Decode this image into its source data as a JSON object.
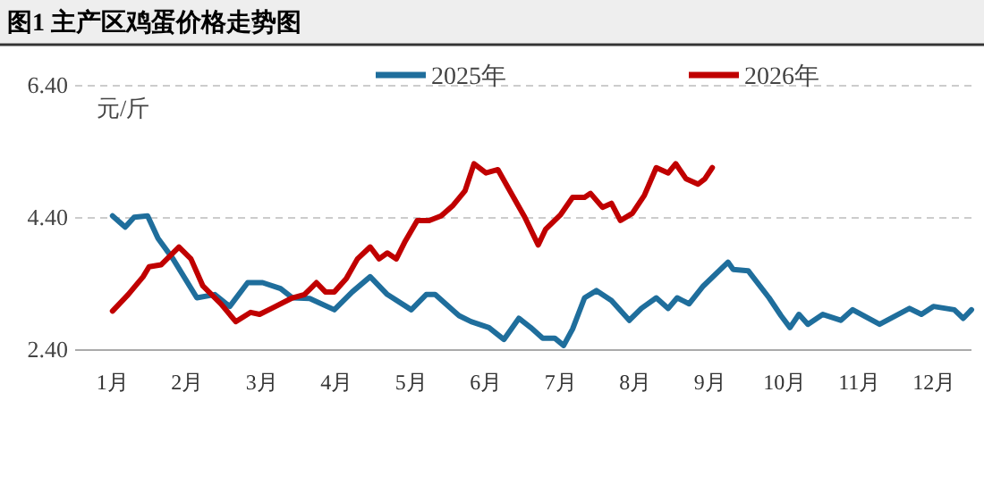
{
  "chart_data": {
    "type": "line",
    "title": "图1 主产区鸡蛋价格走势图",
    "ylabel": "元/斤",
    "xlim": [
      0,
      12
    ],
    "xticks": [
      {
        "value": 0.5,
        "label": "1月"
      },
      {
        "value": 1.5,
        "label": "2月"
      },
      {
        "value": 2.5,
        "label": "3月"
      },
      {
        "value": 3.5,
        "label": "4月"
      },
      {
        "value": 4.5,
        "label": "5月"
      },
      {
        "value": 5.5,
        "label": "6月"
      },
      {
        "value": 6.5,
        "label": "7月"
      },
      {
        "value": 7.5,
        "label": "8月"
      },
      {
        "value": 8.5,
        "label": "9月"
      },
      {
        "value": 9.5,
        "label": "10月"
      },
      {
        "value": 10.5,
        "label": "11月"
      },
      {
        "value": 11.5,
        "label": "12月"
      }
    ],
    "ylim": [
      2.4,
      6.4
    ],
    "yticks": [
      {
        "value": 2.4,
        "label": "2.40"
      },
      {
        "value": 4.4,
        "label": "4.40"
      },
      {
        "value": 6.4,
        "label": "6.40"
      }
    ],
    "grid": "y",
    "legend": "top",
    "marker": "none",
    "line_style": "solid",
    "series": [
      {
        "name": "2025年",
        "color": "#1f6e9c",
        "x": [
          0.5,
          0.67,
          0.79,
          0.97,
          1.11,
          1.31,
          1.63,
          1.87,
          2.07,
          2.31,
          2.51,
          2.75,
          2.91,
          3.14,
          3.47,
          3.71,
          3.95,
          4.18,
          4.5,
          4.7,
          4.82,
          5.14,
          5.3,
          5.54,
          5.74,
          5.94,
          6.1,
          6.26,
          6.42,
          6.54,
          6.66,
          6.82,
          6.98,
          7.18,
          7.42,
          7.58,
          7.78,
          7.94,
          8.06,
          8.22,
          8.41,
          8.74,
          8.81,
          9.01,
          9.29,
          9.45,
          9.57,
          9.69,
          9.81,
          10.01,
          10.25,
          10.41,
          10.77,
          11.17,
          11.33,
          11.49,
          11.77,
          11.89,
          12.0
        ],
        "values": [
          4.43,
          4.26,
          4.41,
          4.43,
          4.09,
          3.78,
          3.19,
          3.24,
          3.06,
          3.42,
          3.42,
          3.33,
          3.19,
          3.18,
          3.01,
          3.28,
          3.51,
          3.24,
          3.01,
          3.24,
          3.24,
          2.92,
          2.83,
          2.74,
          2.56,
          2.88,
          2.74,
          2.58,
          2.58,
          2.47,
          2.72,
          3.19,
          3.3,
          3.15,
          2.85,
          3.03,
          3.19,
          3.03,
          3.19,
          3.1,
          3.37,
          3.73,
          3.62,
          3.6,
          3.19,
          2.92,
          2.74,
          2.94,
          2.79,
          2.94,
          2.85,
          3.01,
          2.79,
          3.03,
          2.94,
          3.06,
          3.01,
          2.88,
          3.01
        ]
      },
      {
        "name": "2026年",
        "color": "#c00000",
        "x": [
          0.5,
          0.71,
          0.91,
          0.99,
          1.15,
          1.39,
          1.55,
          1.71,
          1.95,
          2.15,
          2.35,
          2.47,
          2.63,
          2.91,
          3.07,
          3.23,
          3.35,
          3.47,
          3.63,
          3.78,
          3.95,
          4.07,
          4.18,
          4.3,
          4.42,
          4.58,
          4.74,
          4.9,
          5.06,
          5.22,
          5.34,
          5.5,
          5.66,
          5.82,
          6.02,
          6.2,
          6.3,
          6.5,
          6.66,
          6.82,
          6.9,
          7.06,
          7.18,
          7.3,
          7.46,
          7.62,
          7.78,
          7.94,
          8.04,
          8.18,
          8.34,
          8.43,
          8.53
        ],
        "values": [
          2.99,
          3.24,
          3.51,
          3.66,
          3.69,
          3.96,
          3.78,
          3.37,
          3.1,
          2.83,
          2.97,
          2.94,
          3.03,
          3.19,
          3.24,
          3.42,
          3.28,
          3.28,
          3.48,
          3.78,
          3.96,
          3.78,
          3.87,
          3.78,
          4.05,
          4.36,
          4.36,
          4.43,
          4.59,
          4.81,
          5.22,
          5.08,
          5.13,
          4.81,
          4.41,
          3.99,
          4.23,
          4.45,
          4.71,
          4.71,
          4.77,
          4.56,
          4.62,
          4.36,
          4.47,
          4.74,
          5.16,
          5.08,
          5.22,
          4.99,
          4.91,
          4.99,
          5.16
        ]
      }
    ]
  }
}
